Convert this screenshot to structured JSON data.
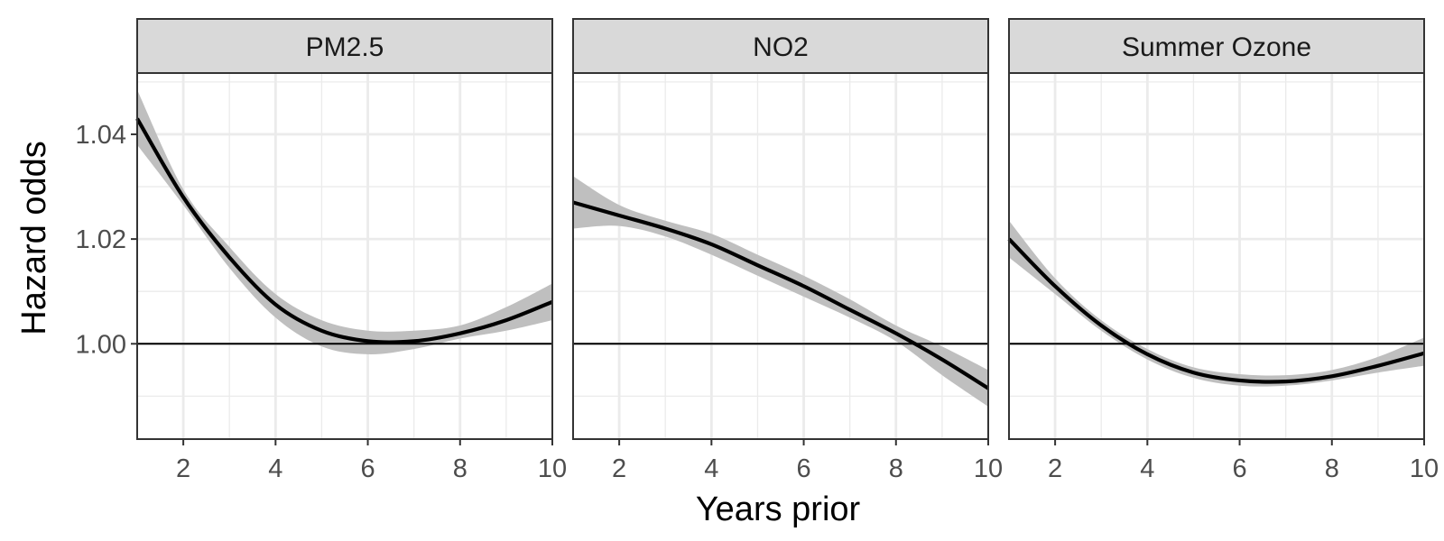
{
  "chart_data": {
    "type": "line",
    "xlabel": "Years prior",
    "ylabel": "Hazard odds",
    "xlim": [
      1,
      10
    ],
    "ylim": [
      0.9818,
      1.0517
    ],
    "x_ticks": [
      2,
      4,
      6,
      8,
      10
    ],
    "y_ticks": [
      1.0,
      1.02,
      1.04
    ],
    "y_tick_labels": [
      "1.00",
      "1.02",
      "1.04"
    ],
    "reference_line": 1.0,
    "grid": true,
    "colors": {
      "line": "#000000",
      "ribbon": "#bfbfbf",
      "strip_fill": "#d9d9d9",
      "grid": "#ebebeb",
      "panel_border": "#333333"
    },
    "panels": [
      {
        "name": "PM2.5",
        "x": [
          1,
          2,
          3,
          4,
          5,
          6,
          7,
          8,
          9,
          10
        ],
        "y": [
          1.043,
          1.028,
          1.0165,
          1.0075,
          1.0025,
          1.0005,
          1.0005,
          1.002,
          1.0045,
          1.008
        ],
        "lower": [
          1.038,
          1.0265,
          1.0145,
          1.005,
          0.9995,
          0.998,
          0.999,
          1.001,
          1.0025,
          1.0045
        ],
        "upper": [
          1.0485,
          1.0295,
          1.0185,
          1.0095,
          1.0045,
          1.0025,
          1.0025,
          1.0035,
          1.007,
          1.0115
        ]
      },
      {
        "name": "NO2",
        "x": [
          1,
          2,
          3,
          4,
          5,
          6,
          7,
          8,
          9,
          10
        ],
        "y": [
          1.027,
          1.0245,
          1.022,
          1.019,
          1.015,
          1.011,
          1.0065,
          1.002,
          0.997,
          0.9915
        ],
        "lower": [
          1.022,
          1.0225,
          1.0205,
          1.017,
          1.013,
          1.009,
          1.005,
          1.0005,
          0.994,
          0.988
        ],
        "upper": [
          1.032,
          1.0265,
          1.0235,
          1.021,
          1.017,
          1.013,
          1.0085,
          1.0035,
          0.9995,
          0.995
        ]
      },
      {
        "name": "Summer Ozone",
        "x": [
          1,
          2,
          3,
          4,
          5,
          6,
          7,
          8,
          9,
          10
        ],
        "y": [
          1.02,
          1.011,
          1.0035,
          0.998,
          0.9945,
          0.993,
          0.9928,
          0.9938,
          0.9958,
          0.9982
        ],
        "lower": [
          1.0165,
          1.0095,
          1.0025,
          0.997,
          0.9935,
          0.992,
          0.992,
          0.993,
          0.9945,
          0.9958
        ],
        "upper": [
          1.0235,
          1.0125,
          1.0045,
          0.999,
          0.9955,
          0.9942,
          0.994,
          0.995,
          0.9975,
          1.0012
        ]
      }
    ]
  }
}
